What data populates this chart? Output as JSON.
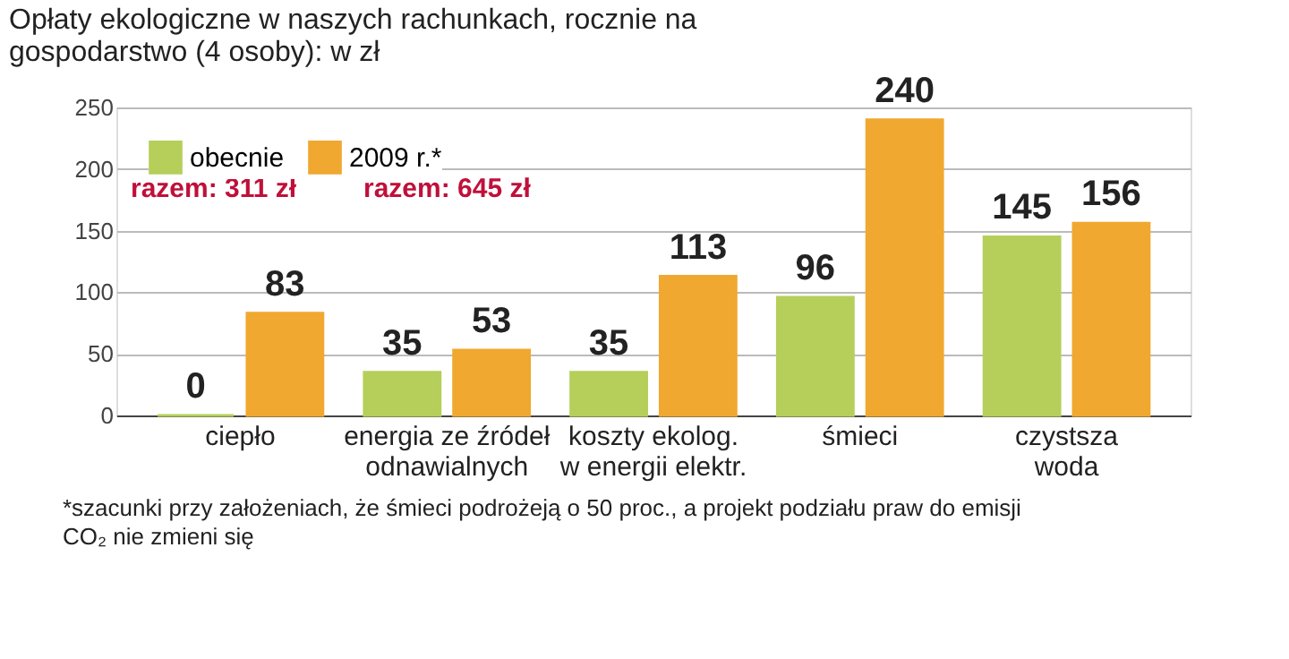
{
  "chart_data": {
    "type": "bar",
    "title": "Opłaty ekologiczne w naszych rachunkach, rocznie na gospodarstwo (4 osoby): w zł",
    "categories": [
      "ciepło",
      "energia ze źródeł\nodnawialnych",
      "koszty ekolog.\nw energii elektr.",
      "śmieci",
      "czystsza\nwoda"
    ],
    "series": [
      {
        "name": "obecnie",
        "color": "#b5cf5a",
        "values": [
          0,
          35,
          35,
          96,
          145
        ]
      },
      {
        "name": "2009 r.*",
        "color": "#f0a830",
        "values": [
          83,
          53,
          113,
          240,
          156
        ]
      }
    ],
    "ylim": [
      0,
      250
    ],
    "yticks": [
      0,
      50,
      100,
      150,
      200,
      250
    ],
    "grid": "y",
    "legend": "top left",
    "data_labels": true,
    "annotations": [
      "razem: 311 zł",
      "razem: 645 zł",
      "*szacunki przy założeniach, że śmieci podrożeją o 50 proc., a projekt podziału praw do emisji CO₂ nie zmieni się"
    ]
  }
}
